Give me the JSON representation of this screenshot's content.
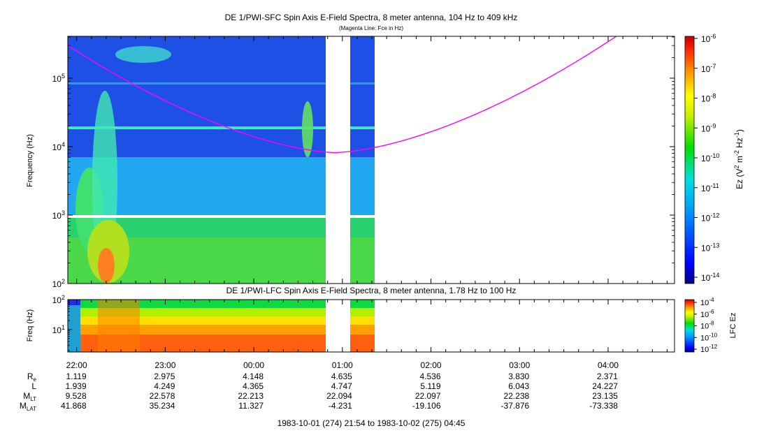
{
  "chart_data": [
    {
      "type": "heatmap",
      "title": "DE 1/PWI-SFC  Spin Axis E-Field Spectra, 8 meter antenna, 104 Hz to 409 kHz",
      "subtitle": "(Magenta Line: Fce in Hz)",
      "ylabel": "Frequency (Hz)",
      "yscale": "log",
      "ylim": [
        100,
        409000
      ],
      "y_ticks": [
        {
          "value": 100,
          "base": "10",
          "exp": "2"
        },
        {
          "value": 1000,
          "base": "10",
          "exp": "3"
        },
        {
          "value": 10000,
          "base": "10",
          "exp": "4"
        },
        {
          "value": 100000,
          "base": "10",
          "exp": "5"
        }
      ],
      "colorbar": {
        "label": "Ez (V",
        "label_exp1": "2",
        "label_mid": " m",
        "label_exp2": "-2",
        "label_mid2": " Hz",
        "label_exp3": "-1",
        "label_end": ")",
        "ticks": [
          {
            "base": "10",
            "exp": "-6"
          },
          {
            "base": "10",
            "exp": "-7"
          },
          {
            "base": "10",
            "exp": "-8"
          },
          {
            "base": "10",
            "exp": "-9"
          },
          {
            "base": "10",
            "exp": "-10"
          },
          {
            "base": "10",
            "exp": "-11"
          },
          {
            "base": "10",
            "exp": "-12"
          },
          {
            "base": "10",
            "exp": "-13"
          },
          {
            "base": "10",
            "exp": "-14"
          }
        ]
      },
      "fce_line": {
        "name": "Fce",
        "color": "#ff00ff",
        "min_freq_hz": 8200,
        "min_time": "00:55"
      },
      "data_gaps": [
        [
          "00:50",
          "01:00"
        ],
        [
          "01:23",
          "04:45"
        ]
      ],
      "data_end": "01:23"
    },
    {
      "type": "heatmap",
      "title": "DE 1/PWI-LFC  Spin Axis E-Field Spectra, 8 meter antenna, 1.78 Hz to 100 Hz",
      "ylabel": "Freq (Hz)",
      "yscale": "log",
      "ylim": [
        1.78,
        100
      ],
      "y_ticks": [
        {
          "value": 10,
          "base": "10",
          "exp": "1"
        },
        {
          "value": 100,
          "base": "10",
          "exp": "2"
        }
      ],
      "colorbar": {
        "label": "LFC Ez",
        "ticks": [
          {
            "base": "10",
            "exp": "-4"
          },
          {
            "base": "10",
            "exp": "-6"
          },
          {
            "base": "10",
            "exp": "-8"
          },
          {
            "base": "10",
            "exp": "-10"
          },
          {
            "base": "10",
            "exp": "-12"
          }
        ]
      }
    }
  ],
  "x_axis": {
    "ticks": [
      "22:00",
      "23:00",
      "00:00",
      "01:00",
      "02:00",
      "03:00",
      "04:00"
    ],
    "range_label": "1983-10-01 (274) 21:54 to 1983-10-02 (275) 04:45"
  },
  "ephemeris": [
    {
      "name": "R",
      "sub": "e",
      "values": [
        "1.119",
        "2.975",
        "4.148",
        "4.635",
        "4.536",
        "3.830",
        "2.371"
      ]
    },
    {
      "name": "L",
      "sub": "",
      "values": [
        "1.939",
        "4.249",
        "4.365",
        "4.747",
        "5.119",
        "6.043",
        "24.227"
      ]
    },
    {
      "name": "M",
      "sub": "LT",
      "values": [
        "9.528",
        "22.578",
        "22.213",
        "22.094",
        "22.097",
        "22.238",
        "23.135"
      ]
    },
    {
      "name": "M",
      "sub": "LAT",
      "values": [
        "41.868",
        "35.234",
        "11.327",
        "-4.231",
        "-19.106",
        "-37.876",
        "-73.338"
      ]
    }
  ],
  "colors": {
    "background": "#1e50e6",
    "fce_line": "#ff00ff",
    "axis": "#000000"
  }
}
